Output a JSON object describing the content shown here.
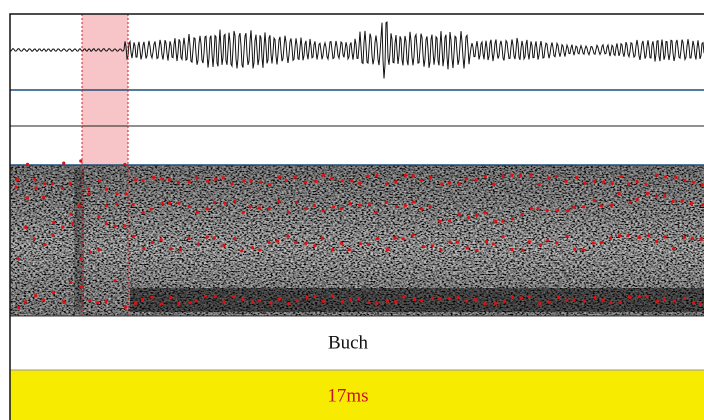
{
  "word_tier": {
    "label": "Buch"
  },
  "duration_tier": {
    "label": "17ms"
  }
}
